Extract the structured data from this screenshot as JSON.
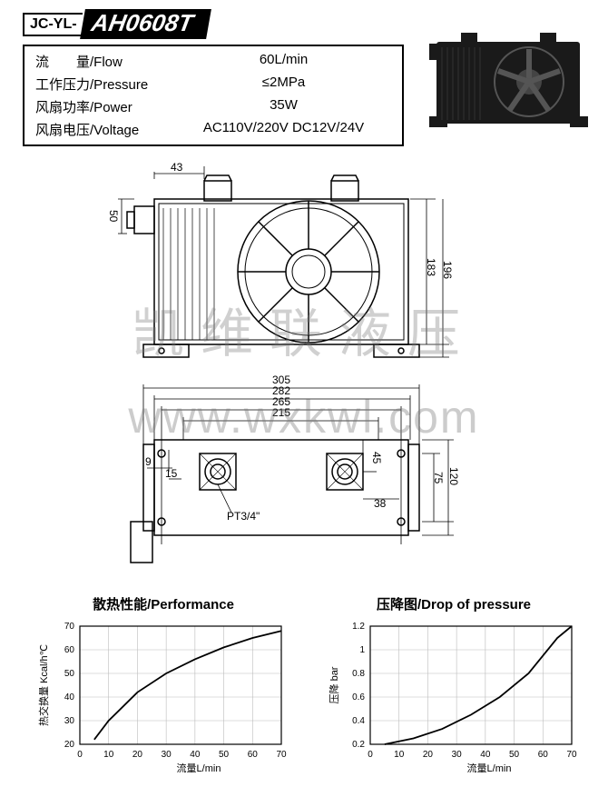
{
  "model": {
    "prefix": "JC-YL-",
    "main": "AH0608T"
  },
  "specs": [
    {
      "label_cn": "流　　量",
      "label_en": "/Flow",
      "value": "60L/min"
    },
    {
      "label_cn": "工作压力",
      "label_en": "/Pressure",
      "value": "≤2MPa"
    },
    {
      "label_cn": "风扇功率",
      "label_en": "/Power",
      "value": "35W"
    },
    {
      "label_cn": "风扇电压",
      "label_en": "/Voltage",
      "value": "AC110V/220V  DC12V/24V"
    }
  ],
  "watermark": {
    "cn": "凯维联液压",
    "url": "www.wxkwl.com"
  },
  "front_view": {
    "dims": {
      "d43": "43",
      "d50": "50",
      "d183": "183",
      "d196": "196"
    }
  },
  "top_view": {
    "dims": {
      "d305": "305",
      "d282": "282",
      "d265": "265",
      "d215": "215",
      "d9": "9",
      "d15": "15",
      "d45": "45",
      "d38": "38",
      "d75": "75",
      "d120": "120"
    },
    "port": "PT3/4\""
  },
  "chart_perf": {
    "title": "散热性能/Performance",
    "xlabel": "流量L/min",
    "ylabel": "热交换量 Kcal/h℃",
    "x_ticks": [
      0,
      10,
      20,
      30,
      40,
      50,
      60,
      70
    ],
    "y_ticks": [
      20,
      30,
      40,
      50,
      60,
      70
    ],
    "y_min": 20,
    "y_max": 70,
    "x_min": 0,
    "x_max": 70,
    "series": [
      [
        5,
        22
      ],
      [
        10,
        30
      ],
      [
        20,
        42
      ],
      [
        30,
        50
      ],
      [
        40,
        56
      ],
      [
        50,
        61
      ],
      [
        60,
        65
      ],
      [
        70,
        68
      ]
    ],
    "line_color": "#000",
    "grid_color": "#bbb",
    "axis_fontsize": 10
  },
  "chart_drop": {
    "title": "压降图/Drop of pressure",
    "xlabel": "流量L/min",
    "ylabel": "压降 bar",
    "x_ticks": [
      0,
      10,
      20,
      30,
      40,
      50,
      60,
      70
    ],
    "y_ticks": [
      0.2,
      0.4,
      0.6,
      0.8,
      1.0,
      1.2
    ],
    "y_min": 0.2,
    "y_max": 1.2,
    "x_min": 0,
    "x_max": 70,
    "series": [
      [
        5,
        0.2
      ],
      [
        15,
        0.25
      ],
      [
        25,
        0.33
      ],
      [
        35,
        0.45
      ],
      [
        45,
        0.6
      ],
      [
        55,
        0.8
      ],
      [
        65,
        1.1
      ],
      [
        70,
        1.2
      ]
    ],
    "line_color": "#000",
    "grid_color": "#bbb",
    "axis_fontsize": 10
  }
}
